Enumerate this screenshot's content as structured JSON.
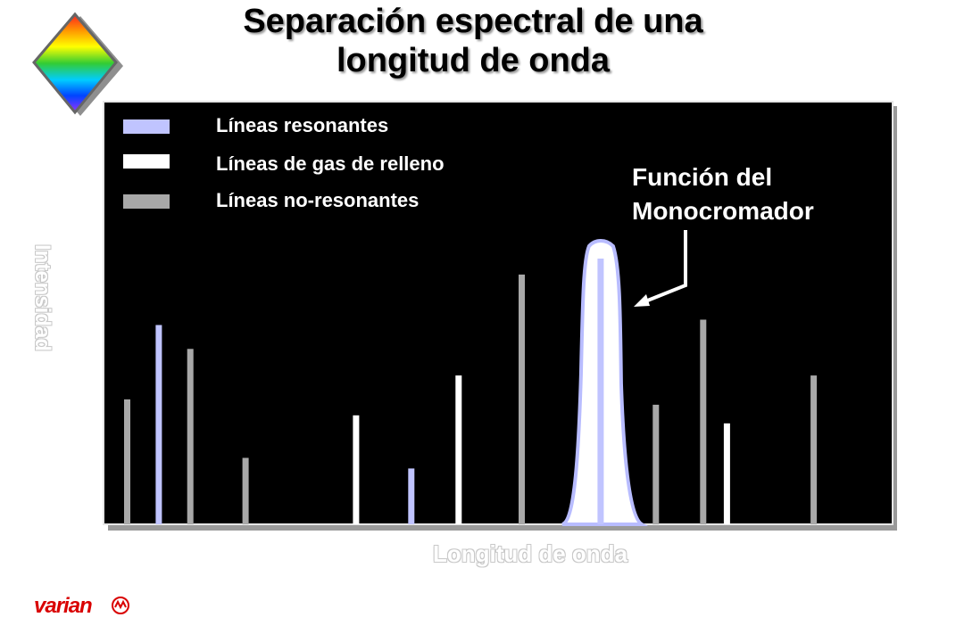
{
  "title_line1": "Separación espectral de una",
  "title_line2": "longitud de onda",
  "logo": {
    "icon": "rainbow-diamond",
    "colors": [
      "#ff2020",
      "#ff9900",
      "#ffff00",
      "#33cc33",
      "#00ccff",
      "#0044ff",
      "#9933ff"
    ]
  },
  "brand": {
    "name": "varian",
    "mark": "varian-symbol-icon",
    "color": "#d90000"
  },
  "chart_data": {
    "type": "bar",
    "xlabel": "Longitud de onda",
    "ylabel": "Intensidad",
    "background": "#000000",
    "grid": false,
    "legend_position": "top-left",
    "ylim": [
      0,
      100
    ],
    "legend": [
      {
        "name": "Líneas resonantes",
        "color": "#c0c4ff"
      },
      {
        "name": "Líneas de gas de relleno",
        "color": "#ffffff"
      },
      {
        "name": "Líneas no-resonantes",
        "color": "#a8a8a8"
      }
    ],
    "series": [
      {
        "name": "Líneas resonantes",
        "color": "#c0c4ff",
        "points": [
          {
            "x": 7,
            "y": 75
          },
          {
            "x": 39,
            "y": 21
          },
          {
            "x": 63,
            "y": 100
          }
        ]
      },
      {
        "name": "Líneas de gas de relleno",
        "color": "#ffffff",
        "points": [
          {
            "x": 32,
            "y": 41
          },
          {
            "x": 45,
            "y": 56
          },
          {
            "x": 79,
            "y": 38
          }
        ]
      },
      {
        "name": "Líneas no-resonantes",
        "color": "#a8a8a8",
        "points": [
          {
            "x": 3,
            "y": 47
          },
          {
            "x": 11,
            "y": 66
          },
          {
            "x": 18,
            "y": 25
          },
          {
            "x": 53,
            "y": 94
          },
          {
            "x": 70,
            "y": 45
          },
          {
            "x": 76,
            "y": 77
          },
          {
            "x": 90,
            "y": 56
          }
        ]
      }
    ],
    "xlim": [
      0,
      100
    ],
    "monochromator_window": {
      "center": 63,
      "fill": "#ffffff",
      "stroke": "#b8bcff"
    },
    "annotation": {
      "line1": "Función del",
      "line2": "Monocromador"
    }
  }
}
